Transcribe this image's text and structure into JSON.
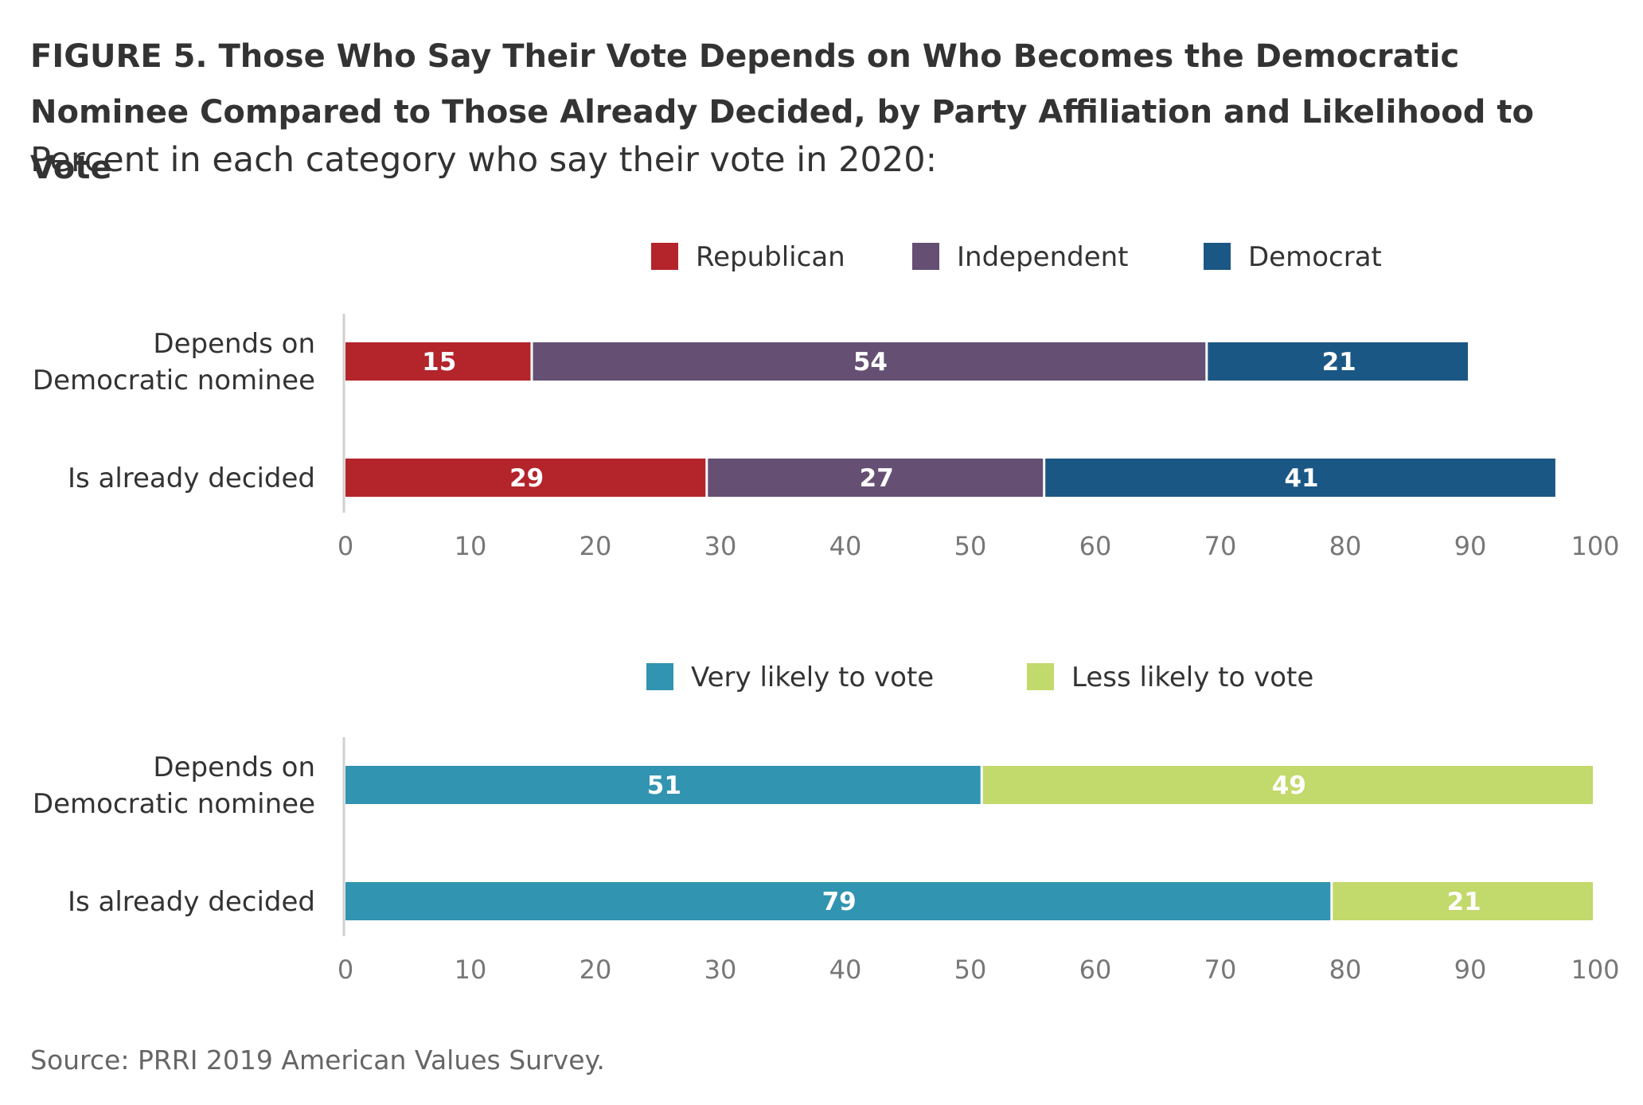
{
  "figure": {
    "title": "FIGURE 5. Those Who Say Their Vote Depends on Who Becomes the Democratic Nominee Compared to Those Already Decided, by Party Affiliation and Likelihood to Vote",
    "subtitle": "Percent in each category who say their vote in 2020:",
    "source": "Source: PRRI 2019 American Values Survey."
  },
  "chart_data": [
    {
      "type": "bar",
      "orientation": "horizontal",
      "stacked": true,
      "categories": [
        "Depends on Democratic nominee",
        "Is already decided"
      ],
      "category_lines": [
        [
          "Depends on",
          "Democratic nominee"
        ],
        [
          "Is already decided"
        ]
      ],
      "series": [
        {
          "name": "Republican",
          "color": "#b3242b",
          "values": [
            15,
            29
          ]
        },
        {
          "name": "Independent",
          "color": "#654f73",
          "values": [
            54,
            27
          ]
        },
        {
          "name": "Democrat",
          "color": "#1b5784",
          "values": [
            21,
            41
          ]
        }
      ],
      "xlim": [
        0,
        100
      ],
      "xticks": [
        0,
        10,
        20,
        30,
        40,
        50,
        60,
        70,
        80,
        90,
        100
      ],
      "legend_position": "top",
      "grid": false
    },
    {
      "type": "bar",
      "orientation": "horizontal",
      "stacked": true,
      "categories": [
        "Depends on Democratic nominee",
        "Is already decided"
      ],
      "category_lines": [
        [
          "Depends on",
          "Democratic nominee"
        ],
        [
          "Is already decided"
        ]
      ],
      "series": [
        {
          "name": "Very likely to vote",
          "color": "#3194b0",
          "values": [
            51,
            79
          ]
        },
        {
          "name": "Less likely to vote",
          "color": "#c2d96c",
          "values": [
            49,
            21
          ]
        }
      ],
      "xlim": [
        0,
        100
      ],
      "xticks": [
        0,
        10,
        20,
        30,
        40,
        50,
        60,
        70,
        80,
        90,
        100
      ],
      "legend_position": "top",
      "grid": false
    }
  ]
}
